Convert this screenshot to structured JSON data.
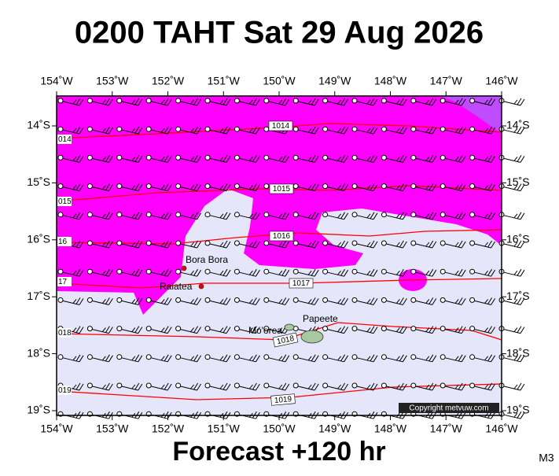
{
  "title": "0200 TAHT Sat 29 Aug 2026",
  "footer": "Forecast +120 hr",
  "corner": "M3",
  "copyright": "Copyright metvuw.com",
  "lon_labels": [
    "154˚W",
    "153˚W",
    "152˚W",
    "151˚W",
    "150˚W",
    "149˚W",
    "148˚W",
    "147˚W",
    "146˚W"
  ],
  "lat_labels": [
    "14˚S",
    "15˚S",
    "16˚S",
    "17˚S",
    "18˚S",
    "19˚S"
  ],
  "places": [
    "Bora Bora",
    "Raiatea",
    "Mo'orea",
    "Papeete"
  ],
  "isobar_labels": [
    "1014",
    "1015",
    "1016",
    "1017",
    "1018",
    "1019"
  ],
  "edge_labels": [
    "014",
    "015",
    "16",
    "17",
    "018",
    "019"
  ]
}
